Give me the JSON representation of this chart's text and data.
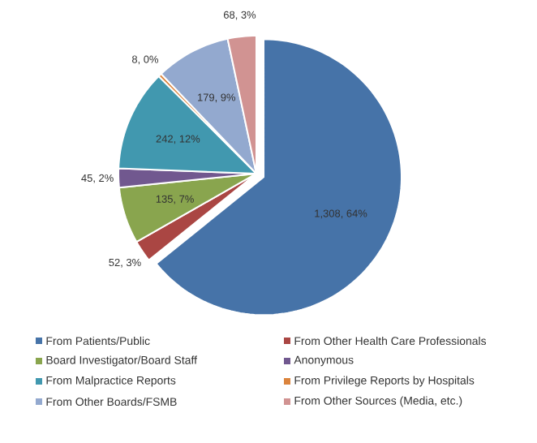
{
  "chart_data": {
    "type": "pie",
    "categories": [
      "From Patients/Public",
      "From Other Health Care Professionals",
      "Board Investigator/Board Staff",
      "Anonymous",
      "From Malpractice Reports",
      "From Privilege Reports by Hospitals",
      "From Other Boards/FSMB",
      "From Other Sources (Media, etc.)"
    ],
    "values": [
      1308,
      52,
      135,
      45,
      242,
      8,
      179,
      68
    ],
    "colors": [
      "#4673a8",
      "#aa4643",
      "#89a54e",
      "#71588f",
      "#4198af",
      "#db843d",
      "#93a9cf",
      "#d19392"
    ],
    "value_labels": [
      "1,308, 64%",
      "52, 3%",
      "135, 7%",
      "45, 2%",
      "242, 12%",
      "8, 0%",
      "179, 9%",
      "68, 3%"
    ],
    "legend": "bottom"
  }
}
